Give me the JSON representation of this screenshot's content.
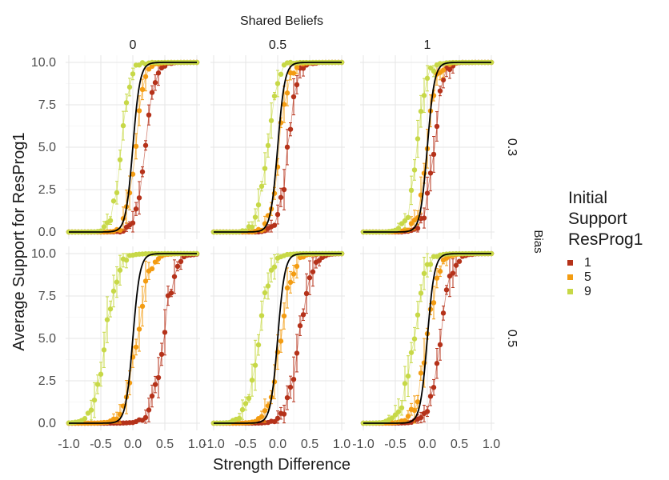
{
  "chart_data": {
    "type": "scatter",
    "title": "",
    "facet_col_title": "Shared Beliefs",
    "facet_col_labels": [
      "0",
      "0.5",
      "1"
    ],
    "facet_row_title": "Bias",
    "facet_row_labels": [
      "0.3",
      "0.5"
    ],
    "xlabel": "Strength Difference",
    "ylabel": "Average Support for ResProg1",
    "xlim": [
      -1.0,
      1.0
    ],
    "ylim": [
      0,
      10
    ],
    "x_ticks": [
      "-1.0",
      "-0.5",
      "0.0",
      "0.5",
      "1.0"
    ],
    "y_ticks": [
      "0.0",
      "2.5",
      "5.0",
      "7.5",
      "10.0"
    ],
    "grid": true,
    "legend": {
      "title_lines": [
        "Initial",
        "Support",
        "ResProg1"
      ],
      "position": "right",
      "entries": [
        {
          "label": "1",
          "color": "#b5321a"
        },
        {
          "label": "5",
          "color": "#f39c12"
        },
        {
          "label": "9",
          "color": "#c7d847"
        }
      ]
    },
    "reference_line": {
      "description": "logistic curve",
      "color": "#000000",
      "slope": 18
    },
    "series": [
      {
        "name": "1",
        "color": "#b5321a",
        "centers": [
          0.2,
          0.16,
          0.1,
          0.47,
          0.33,
          0.2
        ]
      },
      {
        "name": "5",
        "color": "#f39c12",
        "centers": [
          0.04,
          0.02,
          0.0,
          0.06,
          0.05,
          0.0
        ]
      },
      {
        "name": "9",
        "color": "#c7d847",
        "centers": [
          -0.18,
          -0.16,
          -0.15,
          -0.42,
          -0.3,
          -0.22
        ]
      }
    ]
  }
}
